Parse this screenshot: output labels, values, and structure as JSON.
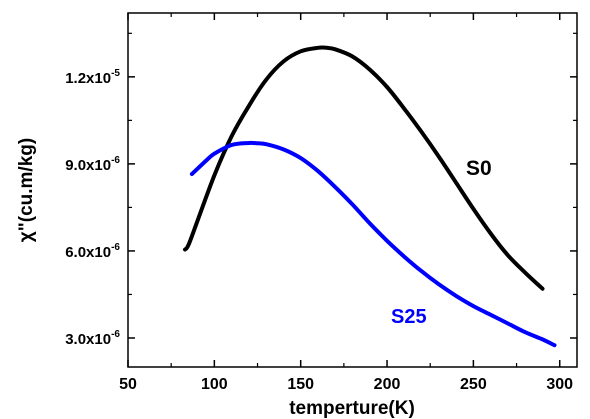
{
  "chart_data": {
    "type": "line",
    "xlabel": "temperture(K)",
    "ylabel": "χ\"(cu.m/kg)",
    "xlim": [
      50,
      310
    ],
    "ylim": [
      2e-06,
      1.42e-05
    ],
    "xticks": [
      50,
      100,
      150,
      200,
      250,
      300
    ],
    "xtick_labels": [
      "50",
      "100",
      "150",
      "200",
      "250",
      "300"
    ],
    "yticks": [
      3e-06,
      6e-06,
      9e-06,
      1.2e-05
    ],
    "ytick_labels": [
      {
        "mantissa": "3.0x10",
        "exponent": "-6"
      },
      {
        "mantissa": "6.0x10",
        "exponent": "-6"
      },
      {
        "mantissa": "9.0x10",
        "exponent": "-6"
      },
      {
        "mantissa": "1.2x10",
        "exponent": "-5"
      }
    ],
    "grid": false,
    "series": [
      {
        "name": "S0",
        "color": "#000000",
        "x": [
          83,
          85,
          90,
          100,
          110,
          120,
          130,
          140,
          150,
          160,
          165,
          170,
          180,
          190,
          200,
          210,
          220,
          230,
          240,
          250,
          260,
          270,
          280,
          290
        ],
        "y": [
          6.05e-06,
          6.2e-06,
          7e-06,
          8.6e-06,
          9.95e-06,
          1.1e-05,
          1.19e-05,
          1.253e-05,
          1.288e-05,
          1.3e-05,
          1.3e-05,
          1.295e-05,
          1.27e-05,
          1.225e-05,
          1.165e-05,
          1.09e-05,
          1.01e-05,
          9.25e-06,
          8.35e-06,
          7.45e-06,
          6.6e-06,
          5.85e-06,
          5.25e-06,
          4.7e-06
        ]
      },
      {
        "name": "S25",
        "color": "#0000ff",
        "x": [
          87,
          95,
          100,
          110,
          120,
          125,
          130,
          140,
          150,
          160,
          170,
          180,
          190,
          200,
          210,
          220,
          230,
          240,
          250,
          260,
          270,
          280,
          290,
          297
        ],
        "y": [
          8.65e-06,
          9.1e-06,
          9.35e-06,
          9.65e-06,
          9.72e-06,
          9.71e-06,
          9.68e-06,
          9.5e-06,
          9.2e-06,
          8.75e-06,
          8.2e-06,
          7.6e-06,
          6.95e-06,
          6.35e-06,
          5.8e-06,
          5.3e-06,
          4.85e-06,
          4.45e-06,
          4.1e-06,
          3.8e-06,
          3.5e-06,
          3.2e-06,
          2.95e-06,
          2.75e-06
        ]
      }
    ]
  }
}
